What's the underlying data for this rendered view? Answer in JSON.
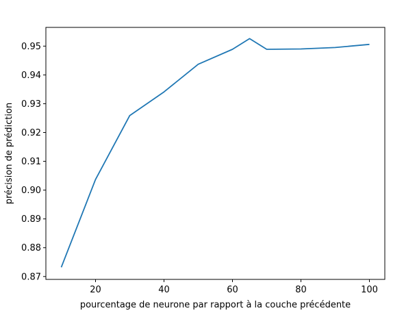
{
  "chart_data": {
    "type": "line",
    "title": "",
    "xlabel": "pourcentage de neurone par rapport à la couche précédente",
    "ylabel": "précision de prédiction",
    "xlim": [
      5.5,
      104.5
    ],
    "ylim": [
      0.869,
      0.9565
    ],
    "xticks": [
      20,
      40,
      60,
      80,
      100
    ],
    "xtick_labels": [
      "20",
      "40",
      "60",
      "80",
      "100"
    ],
    "yticks": [
      0.87,
      0.88,
      0.89,
      0.9,
      0.91,
      0.92,
      0.93,
      0.94,
      0.95
    ],
    "ytick_labels": [
      "0.87",
      "0.88",
      "0.89",
      "0.90",
      "0.91",
      "0.92",
      "0.93",
      "0.94",
      "0.95"
    ],
    "grid": false,
    "legend": "none",
    "series": [
      {
        "color": "#1f77b4",
        "x": [
          10,
          20,
          30,
          40,
          50,
          60,
          65,
          70,
          80,
          90,
          100
        ],
        "y": [
          0.8732,
          0.9037,
          0.9259,
          0.9341,
          0.9437,
          0.9489,
          0.9526,
          0.9489,
          0.949,
          0.9495,
          0.9506
        ]
      }
    ]
  }
}
